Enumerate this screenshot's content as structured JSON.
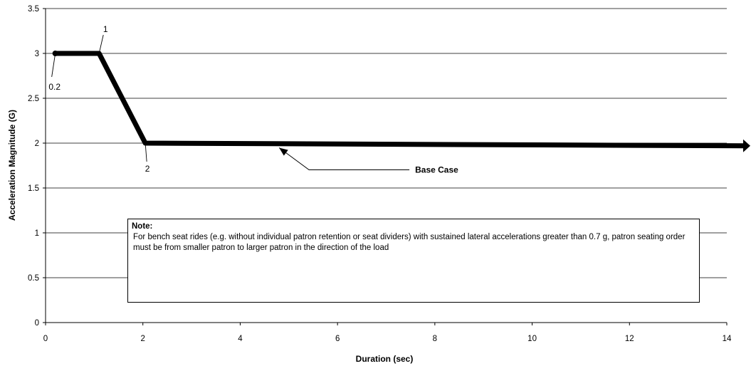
{
  "chart_data": {
    "type": "line",
    "xlabel": "Duration  (sec)",
    "ylabel": "Acceleration Magnitude (G)",
    "xlim": [
      0,
      14
    ],
    "ylim": [
      0,
      3.5
    ],
    "x_ticks": [
      "0",
      "2",
      "4",
      "6",
      "8",
      "10",
      "12",
      "14"
    ],
    "y_ticks": [
      "0",
      "0.5",
      "1",
      "1.5",
      "2",
      "2.5",
      "3",
      "3.5"
    ],
    "grid": "horizontal",
    "series": [
      {
        "name": "Base Case",
        "x": [
          0.2,
          1.1,
          2.05,
          14.5
        ],
        "y": [
          3.0,
          3.0,
          2.0,
          1.97
        ],
        "arrow_at_end": true
      }
    ],
    "point_labels": [
      {
        "text": "0.2",
        "x": 0.2,
        "y": 3.0
      },
      {
        "text": "1",
        "x": 1.1,
        "y": 3.0
      },
      {
        "text": "2",
        "x": 2.05,
        "y": 2.0
      }
    ],
    "annotations": [
      {
        "text": "Base Case",
        "points_to": {
          "x": 4.8,
          "y": 1.98
        }
      }
    ],
    "note": {
      "title": "Note:",
      "text": "For bench seat rides (e.g. without individual patron retention or seat dividers) with sustained lateral accelerations greater than 0.7 g, patron seating order must be from smaller patron to larger patron in the direction of the load"
    }
  }
}
